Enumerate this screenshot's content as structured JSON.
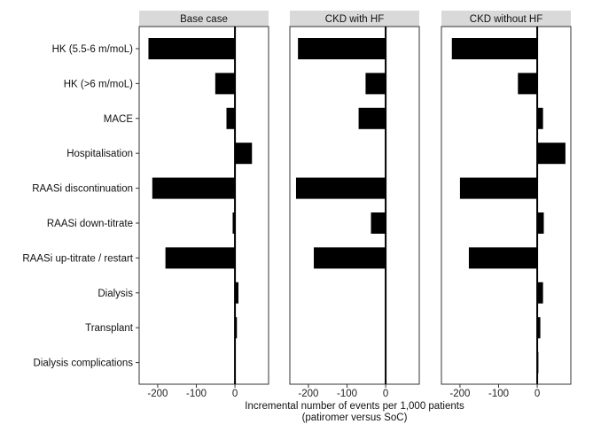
{
  "chart_data": {
    "type": "bar",
    "orientation": "horizontal",
    "categories": [
      "HK (5.5-6 m/moL)",
      "HK (>6 m/moL)",
      "MACE",
      "Hospitalisation",
      "RAASi discontinuation",
      "RAASi down-titrate",
      "RAASi up-titrate / restart",
      "Dialysis",
      "Transplant",
      "Dialysis complications"
    ],
    "panels": [
      {
        "name": "Base case",
        "values": [
          -224,
          -51,
          -22,
          44,
          -214,
          -6,
          -180,
          9,
          5,
          1
        ]
      },
      {
        "name": "CKD with HF",
        "values": [
          -227,
          -52,
          -70,
          2,
          -232,
          -38,
          -186,
          0,
          0,
          0
        ]
      },
      {
        "name": "CKD without HF",
        "values": [
          -221,
          -50,
          15,
          73,
          -200,
          17,
          -177,
          15,
          8,
          3
        ]
      }
    ],
    "xticks": [
      -200,
      -100,
      0
    ],
    "xtick_labels": [
      "-200",
      "-100",
      "0"
    ],
    "xlim": [
      -248,
      87
    ],
    "xlabel": [
      "Incremental number of events per 1,000 patients",
      "(patiromer versus SoC)"
    ],
    "ylabel": "",
    "bar_color": "#000000",
    "strip_color": "#d9d9d9"
  }
}
